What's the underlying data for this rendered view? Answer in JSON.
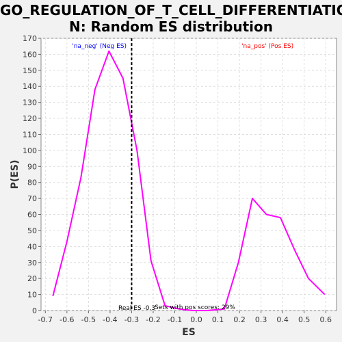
{
  "chart_data": {
    "type": "line",
    "title_line1": "GO_REGULATION_OF_T_CELL_DIFFERENTIATIO",
    "title_line2": "N: Random ES distribution",
    "xlabel": "ES",
    "ylabel": "P(ES)",
    "xlim": [
      -0.72,
      0.65
    ],
    "ylim": [
      0,
      170
    ],
    "xticks": [
      -0.7,
      -0.6,
      -0.5,
      -0.4,
      -0.3,
      -0.2,
      -0.1,
      0.0,
      0.1,
      0.2,
      0.3,
      0.4,
      0.5,
      0.6
    ],
    "xtick_labels": [
      "-0.7",
      "-0.6",
      "-0.5",
      "-0.4",
      "-0.3",
      "-0.2",
      "-0.1",
      "0.0",
      "0.1",
      "0.2",
      "0.3",
      "0.4",
      "0.5",
      "0.6"
    ],
    "yticks": [
      0,
      10,
      20,
      30,
      40,
      50,
      60,
      70,
      80,
      90,
      100,
      110,
      120,
      130,
      140,
      150,
      160,
      170
    ],
    "grid": true,
    "series": [
      {
        "color": "#ff00ff",
        "x": [
          -0.665,
          -0.6,
          -0.535,
          -0.47,
          -0.405,
          -0.34,
          -0.275,
          -0.21,
          -0.145,
          -0.08,
          -0.015,
          0.05,
          0.13,
          0.195,
          0.26,
          0.325,
          0.39,
          0.455,
          0.52,
          0.595
        ],
        "y": [
          9,
          43,
          83,
          138,
          162,
          145,
          100,
          31,
          3,
          1,
          0,
          0,
          1,
          30,
          70,
          60,
          58,
          38,
          20,
          10
        ]
      }
    ],
    "real_es": {
      "x": -0.3,
      "color": "#000000"
    },
    "annotations": {
      "neg_label": "'na_neg' (Neg ES)",
      "neg_color": "#0000ff",
      "pos_label": "'na_pos' (Pos ES)",
      "pos_color": "#ff0000",
      "real_es_text": "Real ES -0.3",
      "pos_scores_text": "Sets with pos scores: 29%"
    }
  }
}
